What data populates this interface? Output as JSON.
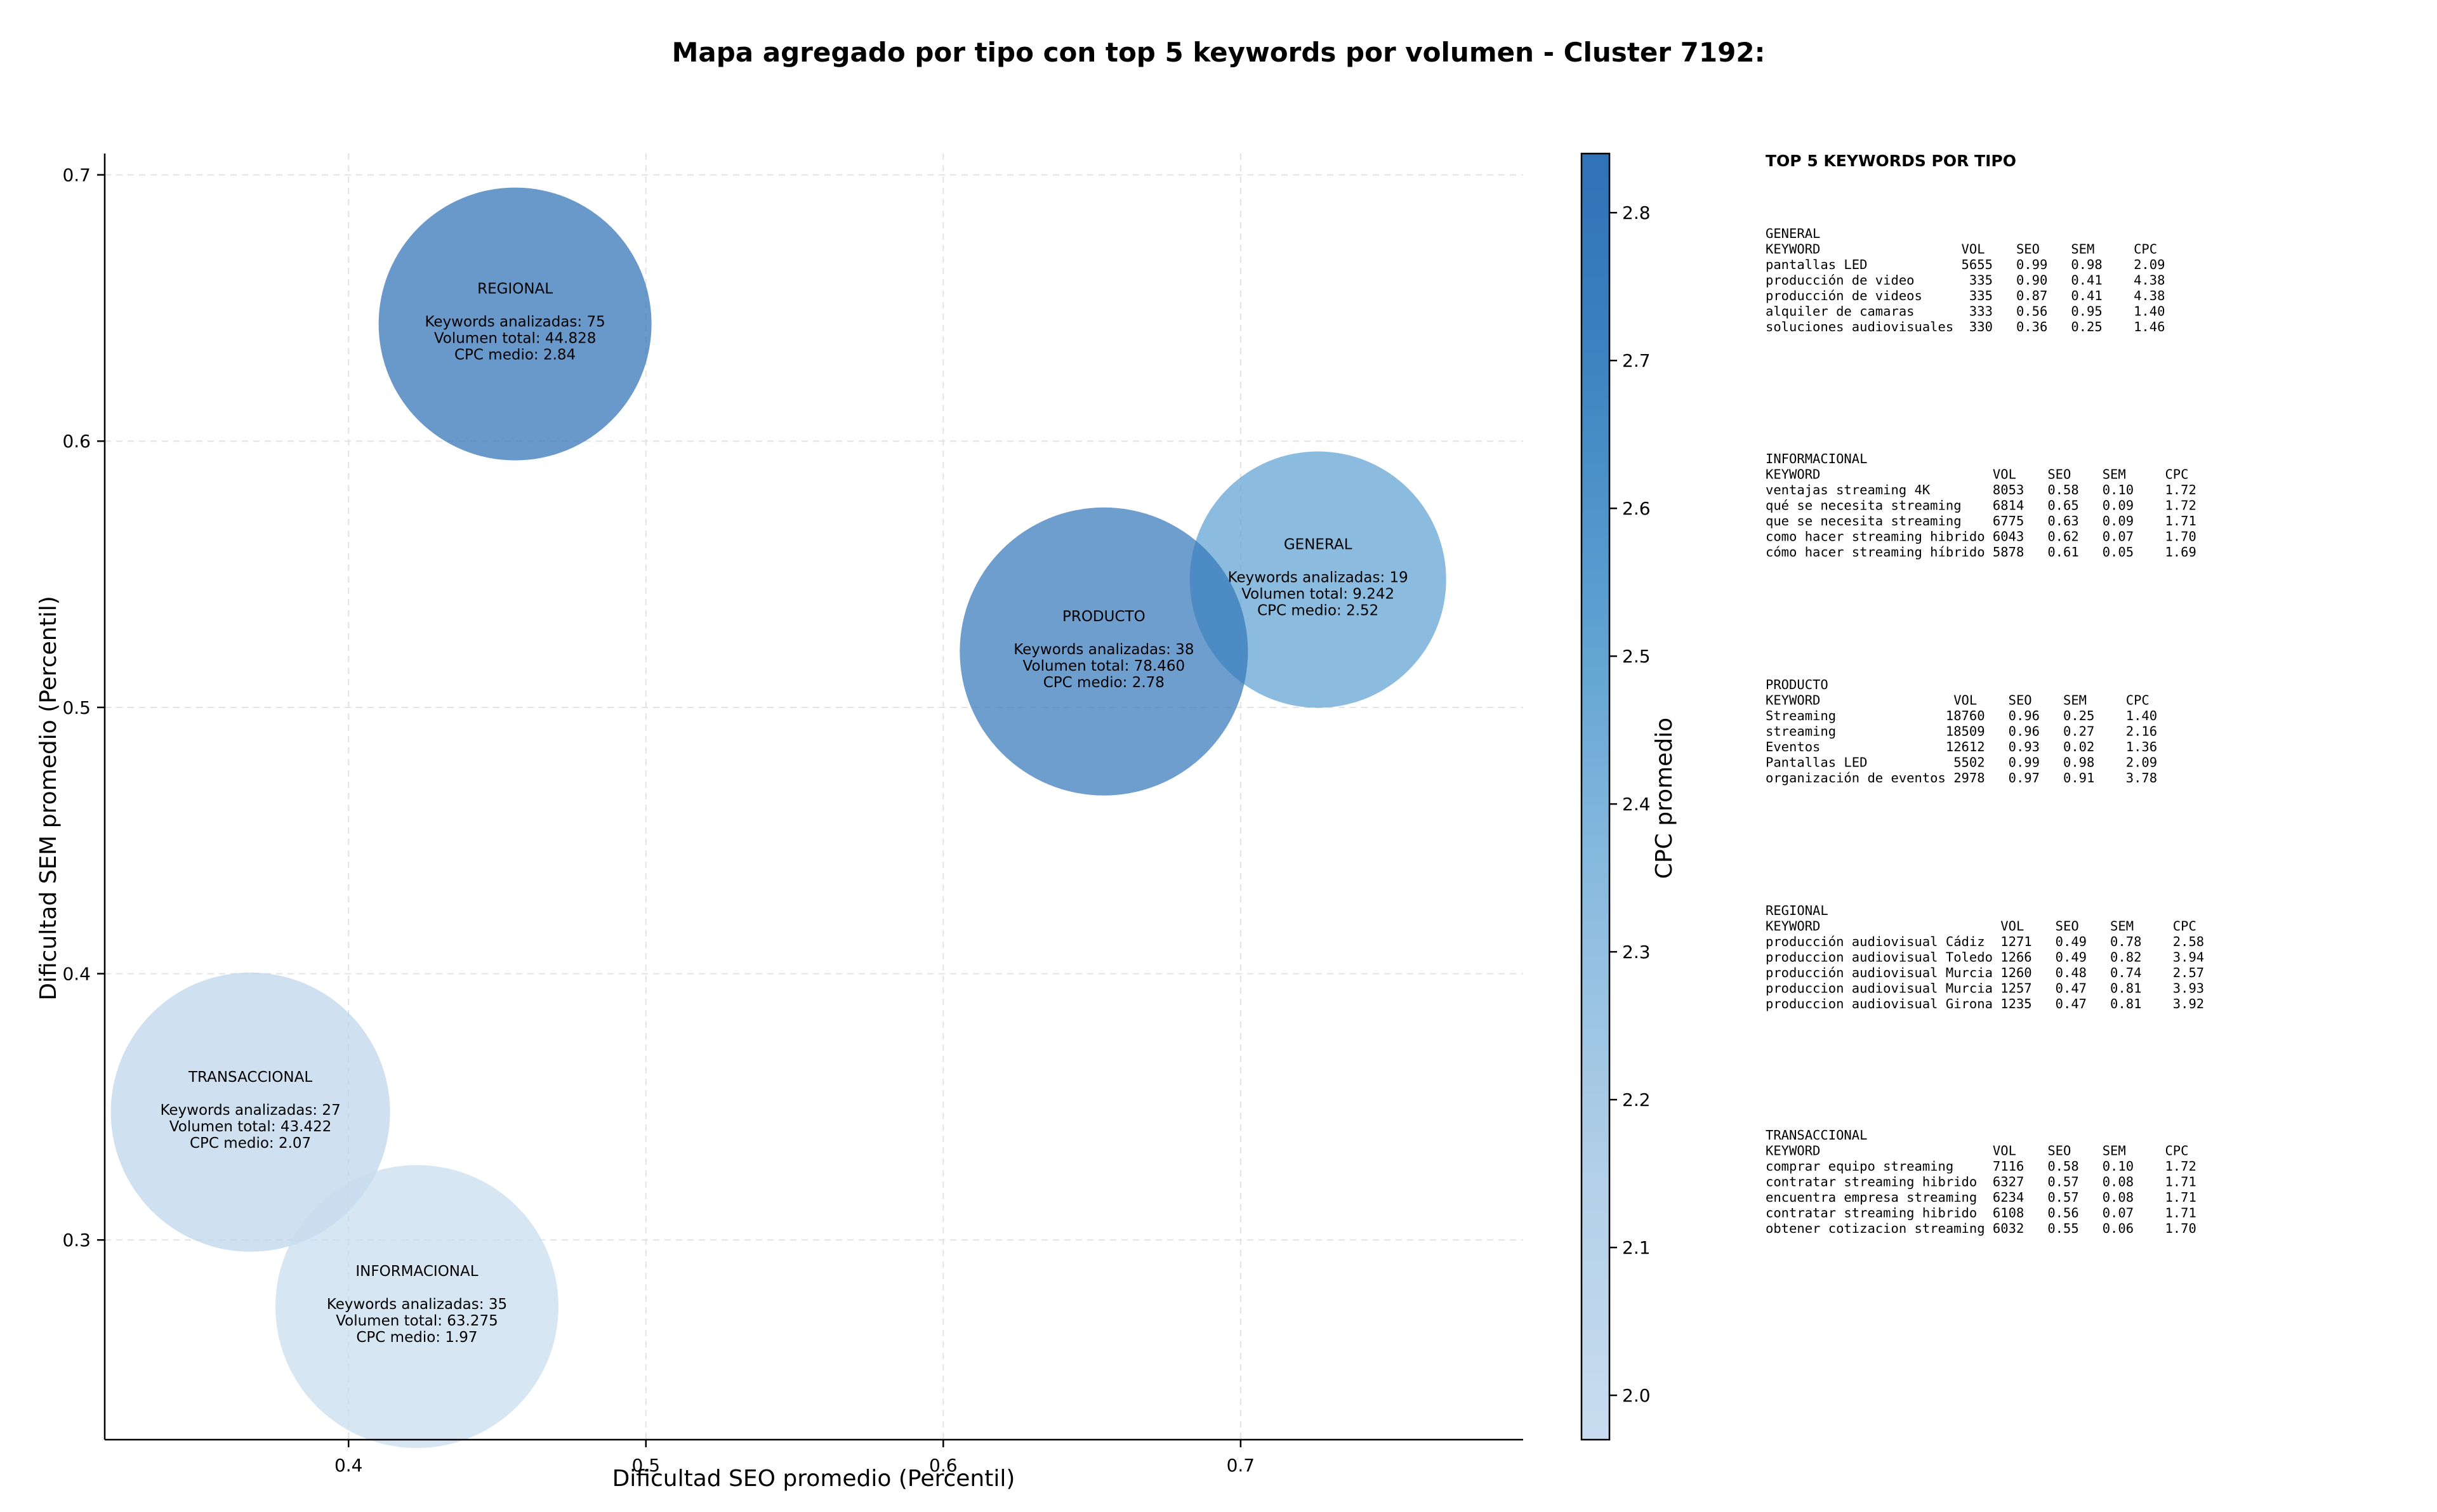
{
  "chart_data": {
    "type": "scatter",
    "title": "Mapa agregado por tipo con top 5 keywords por volumen - Cluster 7192:",
    "xlabel": "Dificultad SEO promedio (Percentil)",
    "ylabel": "Dificultad SEM promedio (Percentil)",
    "xlim": [
      0.318,
      0.795
    ],
    "ylim": [
      0.225,
      0.708
    ],
    "xticks": [
      0.4,
      0.5,
      0.6,
      0.7
    ],
    "yticks": [
      0.3,
      0.4,
      0.5,
      0.6,
      0.7
    ],
    "grid": true,
    "colorbar": {
      "label": "CPC promedio",
      "min": 1.97,
      "max": 2.84,
      "ticks": [
        2.0,
        2.1,
        2.2,
        2.3,
        2.4,
        2.5,
        2.6,
        2.7,
        2.8
      ],
      "colormap": [
        "#c8dcef",
        "#2f72b6"
      ]
    },
    "points": [
      {
        "type": "REGIONAL",
        "x": 0.456,
        "y": 0.644,
        "keywords_label": "Keywords analizadas: 75",
        "volume_label": "Volumen total: 44.828",
        "cpc_label": "CPC medio: 2.84",
        "cpc": 2.84
      },
      {
        "type": "GENERAL",
        "x": 0.726,
        "y": 0.548,
        "keywords_label": "Keywords analizadas: 19",
        "volume_label": "Volumen total: 9.242",
        "cpc_label": "CPC medio: 2.52",
        "cpc": 2.52
      },
      {
        "type": "PRODUCTO",
        "x": 0.654,
        "y": 0.521,
        "keywords_label": "Keywords analizadas: 38",
        "volume_label": "Volumen total: 78.460",
        "cpc_label": "CPC medio: 2.78",
        "cpc": 2.78
      },
      {
        "type": "TRANSACCIONAL",
        "x": 0.367,
        "y": 0.348,
        "keywords_label": "Keywords analizadas: 27",
        "volume_label": "Volumen total: 43.422",
        "cpc_label": "CPC medio: 2.07",
        "cpc": 2.07
      },
      {
        "type": "INFORMACIONAL",
        "x": 0.423,
        "y": 0.275,
        "keywords_label": "Keywords analizadas: 35",
        "volume_label": "Volumen total: 63.275",
        "cpc_label": "CPC medio: 1.97",
        "cpc": 1.97
      }
    ],
    "panel": {
      "title": "TOP 5 KEYWORDS POR TIPO",
      "sections": [
        {
          "name": "GENERAL",
          "header": "KEYWORD                  VOL    SEO    SEM     CPC",
          "rows": [
            "pantallas LED            5655   0.99   0.98    2.09",
            "producción de video       335   0.90   0.41    4.38",
            "producción de videos      335   0.87   0.41    4.38",
            "alquiler de camaras       333   0.56   0.95    1.40",
            "soluciones audiovisuales  330   0.36   0.25    1.46"
          ]
        },
        {
          "name": "INFORMACIONAL",
          "header": "KEYWORD                      VOL    SEO    SEM     CPC",
          "rows": [
            "ventajas streaming 4K        8053   0.58   0.10    1.72",
            "qué se necesita streaming    6814   0.65   0.09    1.72",
            "que se necesita streaming    6775   0.63   0.09    1.71",
            "como hacer streaming hibrido 6043   0.62   0.07    1.70",
            "cómo hacer streaming híbrido 5878   0.61   0.05    1.69"
          ]
        },
        {
          "name": "PRODUCTO",
          "header": "KEYWORD                 VOL    SEO    SEM     CPC",
          "rows": [
            "Streaming              18760   0.96   0.25    1.40",
            "streaming              18509   0.96   0.27    2.16",
            "Eventos                12612   0.93   0.02    1.36",
            "Pantallas LED           5502   0.99   0.98    2.09",
            "organización de eventos 2978   0.97   0.91    3.78"
          ]
        },
        {
          "name": "REGIONAL",
          "header": "KEYWORD                       VOL    SEO    SEM     CPC",
          "rows": [
            "producción audiovisual Cádiz  1271   0.49   0.78    2.58",
            "produccion audiovisual Toledo 1266   0.49   0.82    3.94",
            "producción audiovisual Murcia 1260   0.48   0.74    2.57",
            "produccion audiovisual Murcia 1257   0.47   0.81    3.93",
            "produccion audiovisual Girona 1235   0.47   0.81    3.92"
          ]
        },
        {
          "name": "TRANSACCIONAL",
          "header": "KEYWORD                      VOL    SEO    SEM     CPC",
          "rows": [
            "comprar equipo streaming     7116   0.58   0.10    1.72",
            "contratar streaming hibrido  6327   0.57   0.08    1.71",
            "encuentra empresa streaming  6234   0.57   0.08    1.71",
            "contratar streaming hibrido  6108   0.56   0.07    1.71",
            "obtener cotizacion streaming 6032   0.55   0.06    1.70"
          ]
        }
      ]
    }
  }
}
